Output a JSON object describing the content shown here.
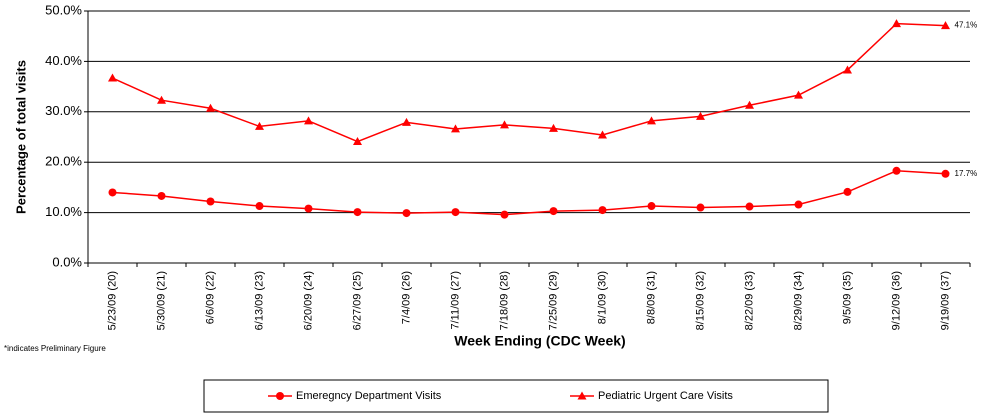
{
  "chart_data": {
    "type": "line",
    "y_label": "Percentage of total visits",
    "x_label": "Week Ending (CDC Week)",
    "note": "*indicates Preliminary Figure",
    "categories": [
      "5/23/09 (20)",
      "5/30/09 (21)",
      "6/6/09 (22)",
      "6/13/09 (23)",
      "6/20/09 (24)",
      "6/27/09 (25)",
      "7/4/09 (26)",
      "7/11/09 (27)",
      "7/18/09 (28)",
      "7/25/09 (29)",
      "8/1/09 (30)",
      "8/8/09 (31)",
      "8/15/09 (32)",
      "8/22/09 (33)",
      "8/29/09 (34)",
      "9/5/09 (35)",
      "9/12/09 (36)",
      "9/19/09 (37)"
    ],
    "series": [
      {
        "name": "Emeregncy Department Visits",
        "color": "#ff0000",
        "marker": "circle",
        "values": [
          14.0,
          13.3,
          12.2,
          11.3,
          10.8,
          10.1,
          9.9,
          10.1,
          9.6,
          10.3,
          10.5,
          11.3,
          11.0,
          11.2,
          11.6,
          14.1,
          18.3,
          17.7
        ],
        "value_labels": [
          null,
          null,
          null,
          null,
          null,
          null,
          null,
          null,
          null,
          null,
          null,
          null,
          null,
          null,
          null,
          null,
          null,
          "17.7%"
        ]
      },
      {
        "name": "Pediatric Urgent Care Visits",
        "color": "#ff0000",
        "marker": "triangle",
        "values": [
          36.7,
          32.3,
          30.7,
          27.1,
          28.2,
          24.1,
          27.9,
          26.6,
          27.4,
          26.7,
          25.4,
          28.2,
          29.1,
          31.3,
          33.3,
          38.3,
          47.5,
          47.1
        ],
        "value_labels": [
          null,
          null,
          null,
          null,
          null,
          null,
          null,
          null,
          null,
          null,
          null,
          null,
          null,
          null,
          null,
          null,
          null,
          "47.1%"
        ]
      }
    ],
    "ylim": [
      0,
      50
    ],
    "yticks": [
      {
        "value": 0,
        "label": "0.0%"
      },
      {
        "value": 10,
        "label": "10.0%"
      },
      {
        "value": 20,
        "label": "20.0%"
      },
      {
        "value": 30,
        "label": "30.0%"
      },
      {
        "value": 40,
        "label": "40.0%"
      },
      {
        "value": 50,
        "label": "50.0%"
      }
    ],
    "grid": true,
    "legend": "bottom"
  }
}
